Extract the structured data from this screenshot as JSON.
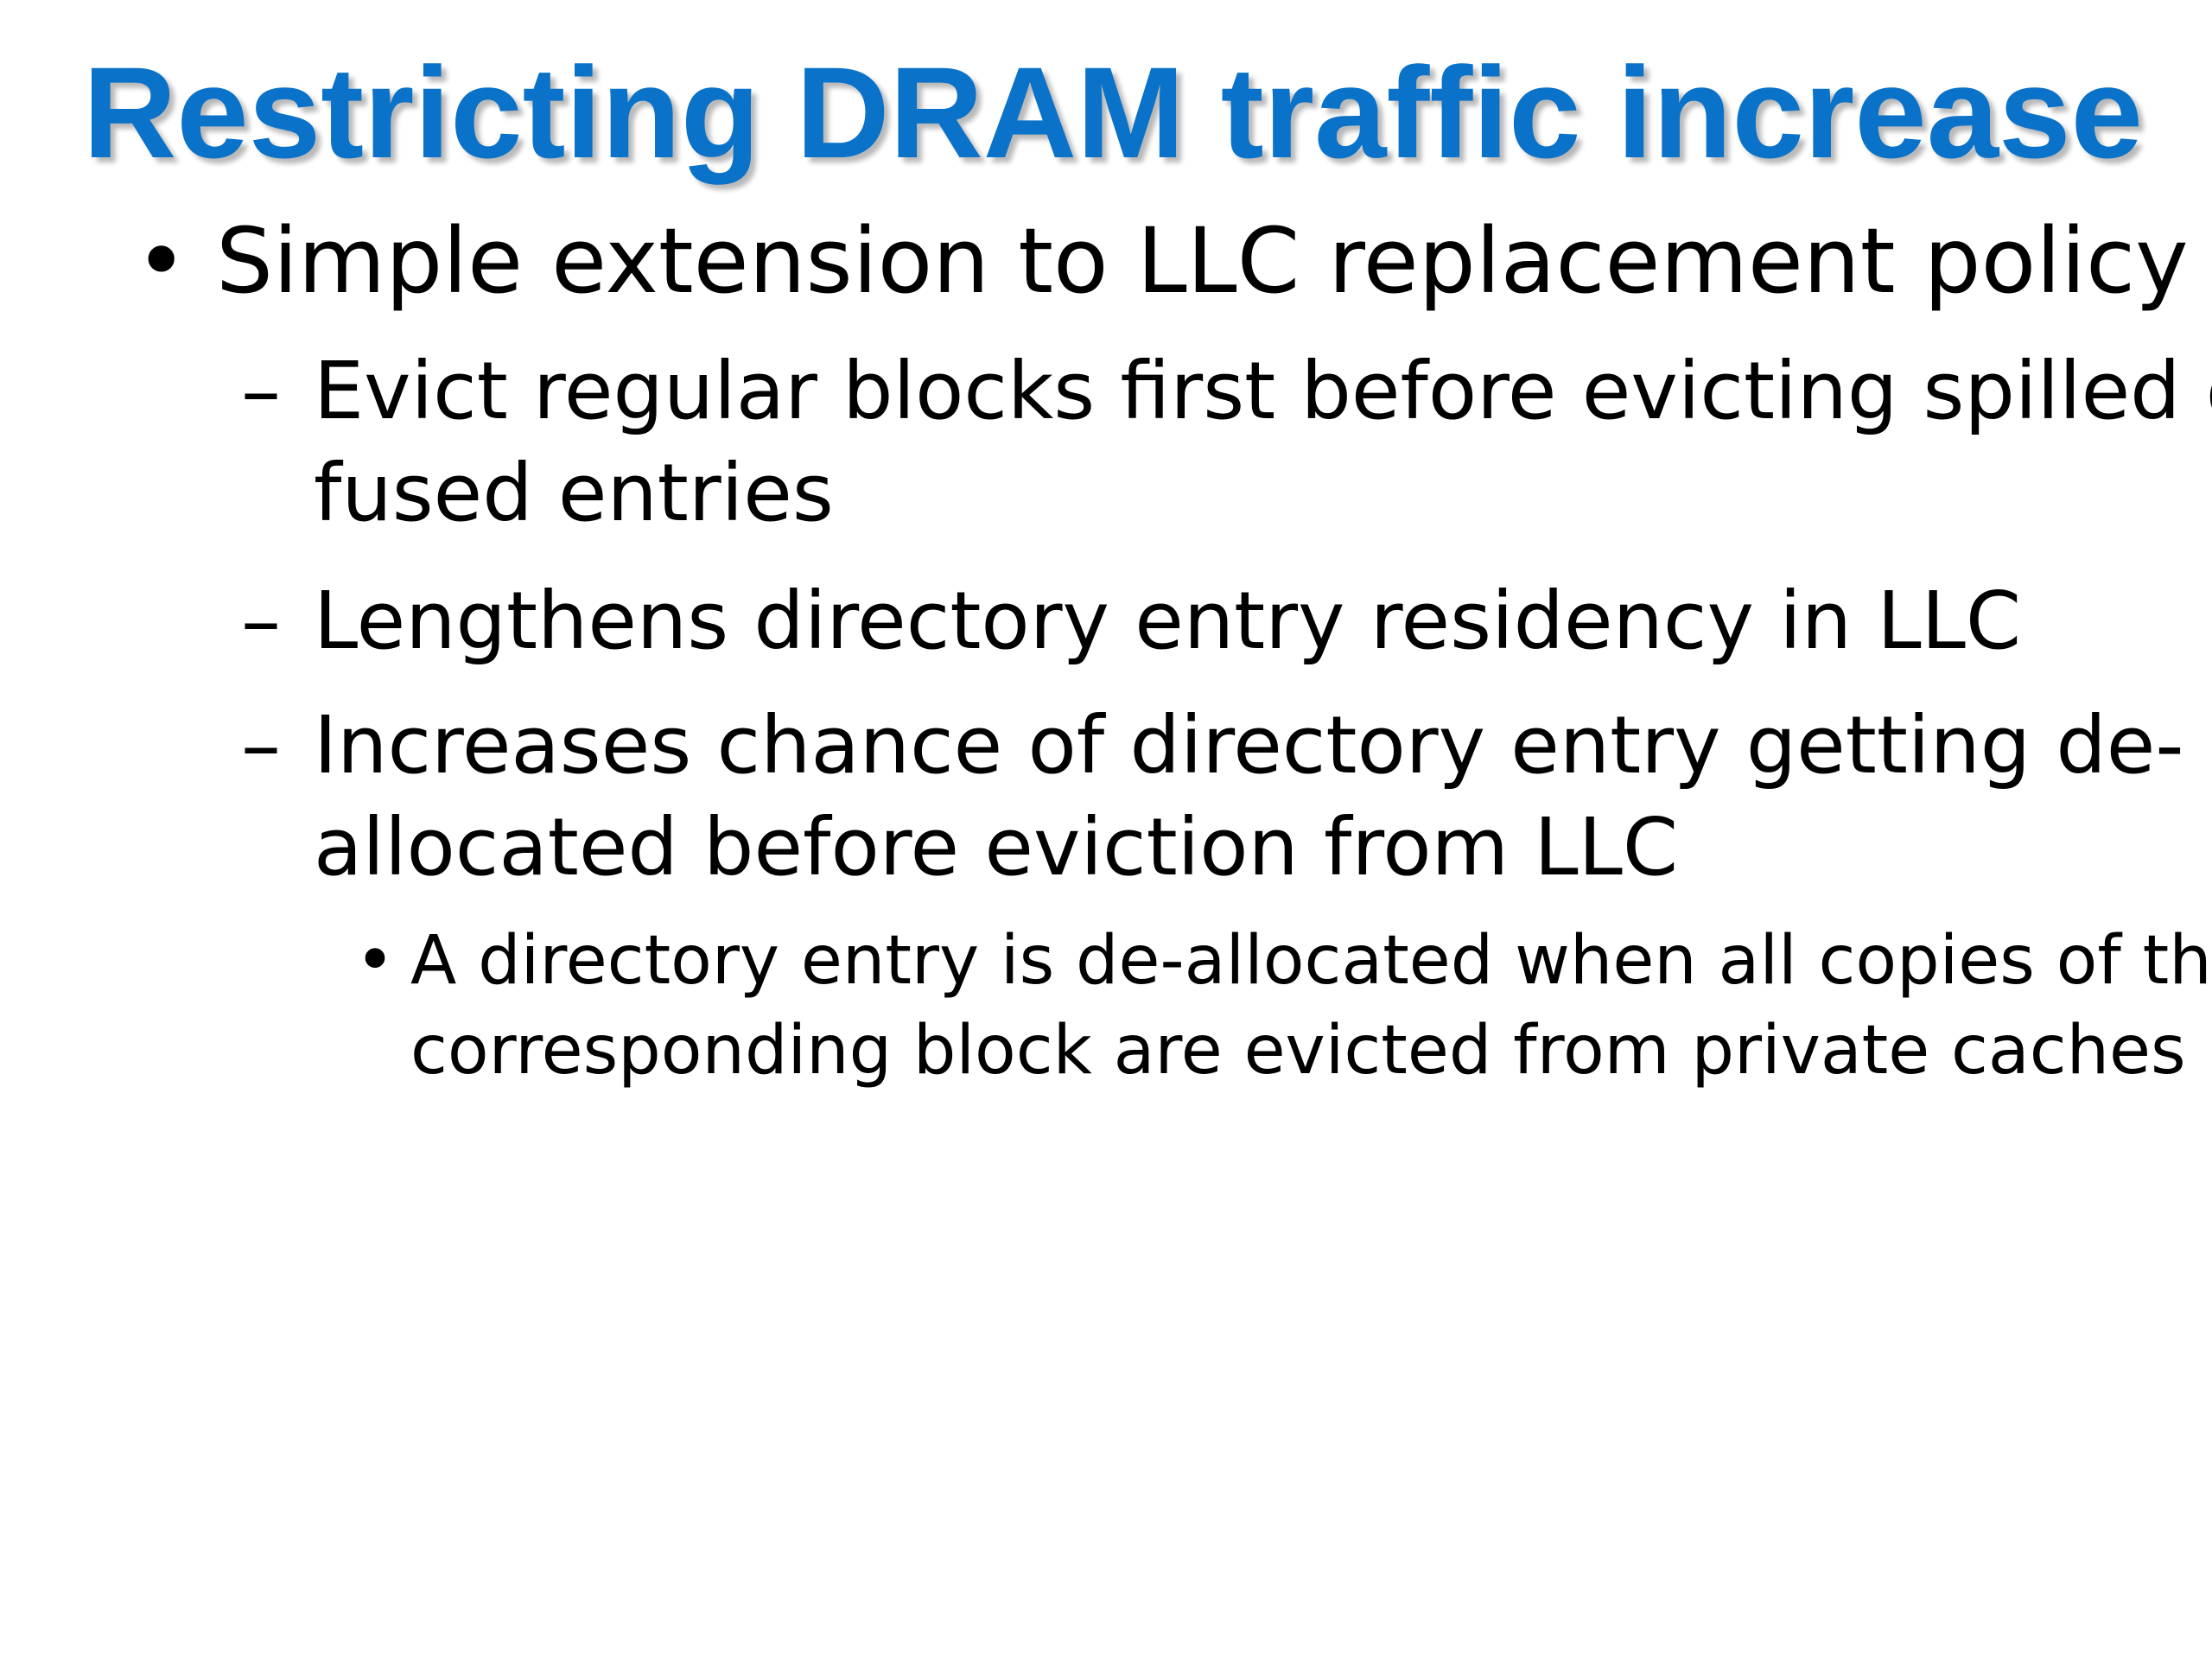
{
  "slide": {
    "title": "Restricting DRAM traffic increase",
    "bullets": [
      {
        "marker": "•",
        "lines": [
          "Simple extension to LLC replacement policy"
        ]
      }
    ],
    "sub_bullets": [
      {
        "marker": "–",
        "lines": [
          "Evict regular blocks first before evicting spilled or",
          "fused entries"
        ]
      },
      {
        "marker": "–",
        "lines": [
          "Lengthens directory entry residency in LLC"
        ]
      },
      {
        "marker": "–",
        "lines": [
          "Increases chance of directory entry getting de-",
          "allocated before eviction from LLC"
        ]
      }
    ],
    "sub_sub_bullets": [
      {
        "marker": "•",
        "lines": [
          "A directory entry is de-allocated when all copies of the",
          "corresponding block are evicted from private caches"
        ]
      }
    ]
  }
}
